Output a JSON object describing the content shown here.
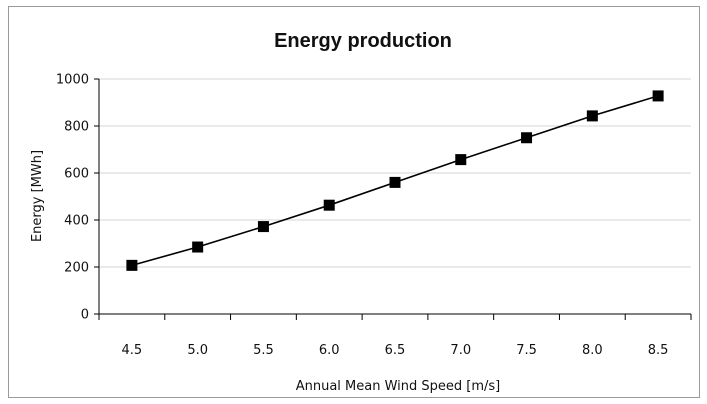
{
  "chart_data": {
    "type": "line",
    "title": "Energy production",
    "xlabel": "Annual Mean Wind Speed [m/s]",
    "ylabel": "Energy [MWh]",
    "categories": [
      "4.5",
      "5.0",
      "5.5",
      "6.0",
      "6.5",
      "7.0",
      "7.5",
      "8.0",
      "8.5"
    ],
    "yticks": [
      "0",
      "200",
      "400",
      "600",
      "800",
      "1000"
    ],
    "ylim": [
      0,
      1000
    ],
    "grid": true,
    "series": [
      {
        "values": [
          207,
          285,
          372,
          463,
          560,
          657,
          750,
          843,
          928
        ],
        "color": "#000000",
        "marker": "square"
      }
    ]
  }
}
